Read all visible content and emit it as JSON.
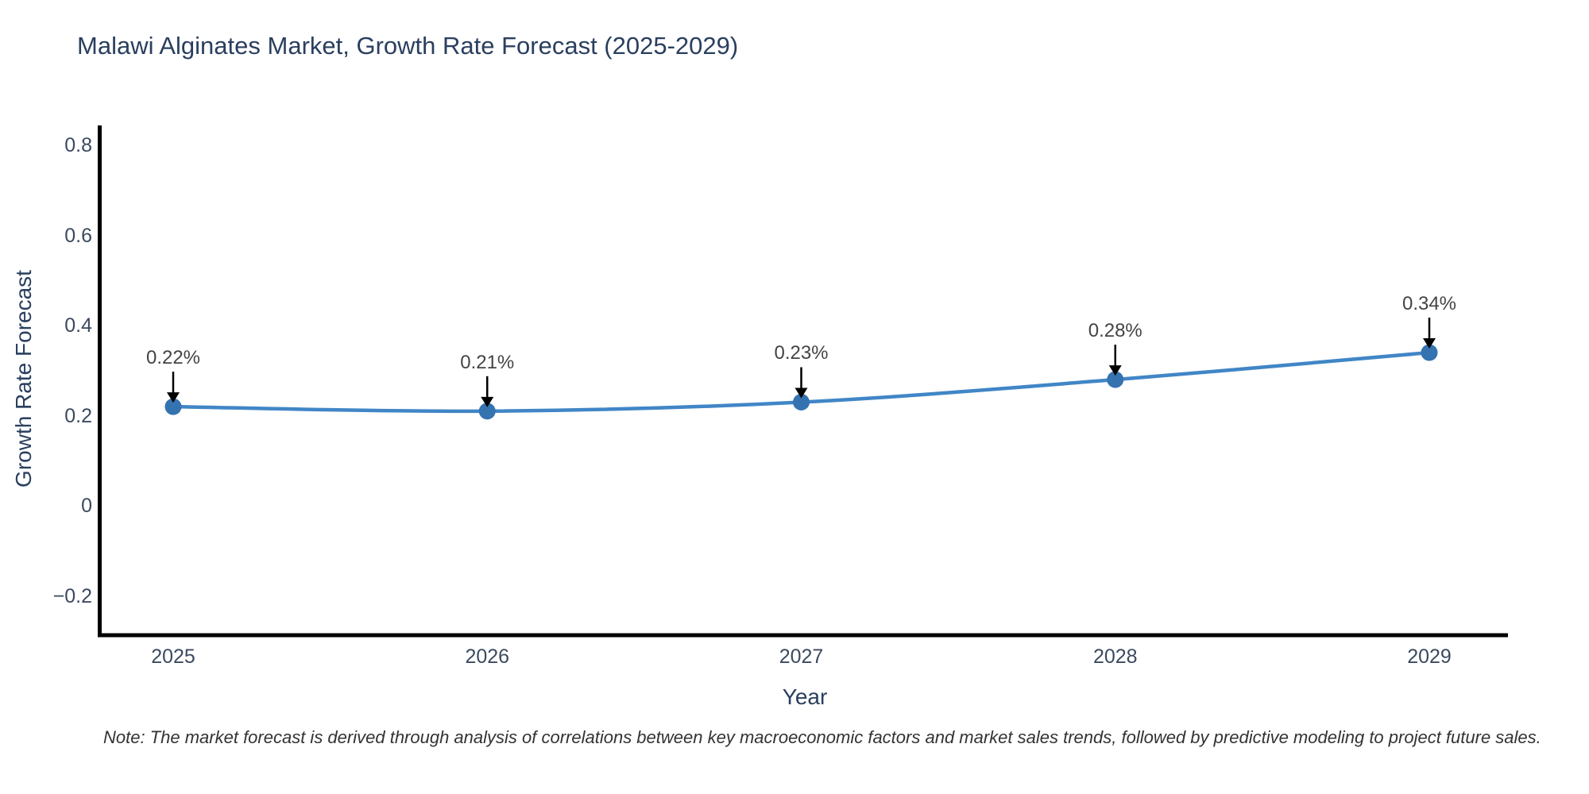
{
  "figure": {
    "background": "#ffffff"
  },
  "chart_data": {
    "type": "line",
    "title": "Malawi Alginates Market, Growth Rate Forecast (2025-2029)",
    "xlabel": "Year",
    "ylabel": "Growth Rate Forecast",
    "x": [
      "2025",
      "2026",
      "2027",
      "2028",
      "2029"
    ],
    "values": [
      0.22,
      0.21,
      0.23,
      0.28,
      0.34
    ],
    "point_labels": [
      "0.22%",
      "0.21%",
      "0.23%",
      "0.28%",
      "0.34%"
    ],
    "ytick_labels": [
      "0.8",
      "0.6",
      "0.4",
      "0.2",
      "0",
      "−0.2"
    ],
    "ytick_values": [
      0.8,
      0.6,
      0.4,
      0.2,
      0,
      -0.2
    ],
    "ylim": [
      -0.29,
      0.84
    ],
    "grid": false,
    "legend": "none",
    "line_shape": "spline",
    "markers": true,
    "annotation_arrows": true,
    "colors": {
      "line": "#4186c6",
      "marker": "#3572b0",
      "axis": "#000000",
      "arrow": "#000000",
      "title_text": "#2a3f5f",
      "axis_title_text": "#2a3f5f",
      "tick_text": "#3b4a5f",
      "annotation_text": "#444444",
      "note_text": "#333333",
      "background": "#ffffff"
    },
    "note": "Note: The market forecast is derived through analysis of correlations between key macroeconomic factors and market sales trends, followed by predictive modeling to project future sales."
  }
}
